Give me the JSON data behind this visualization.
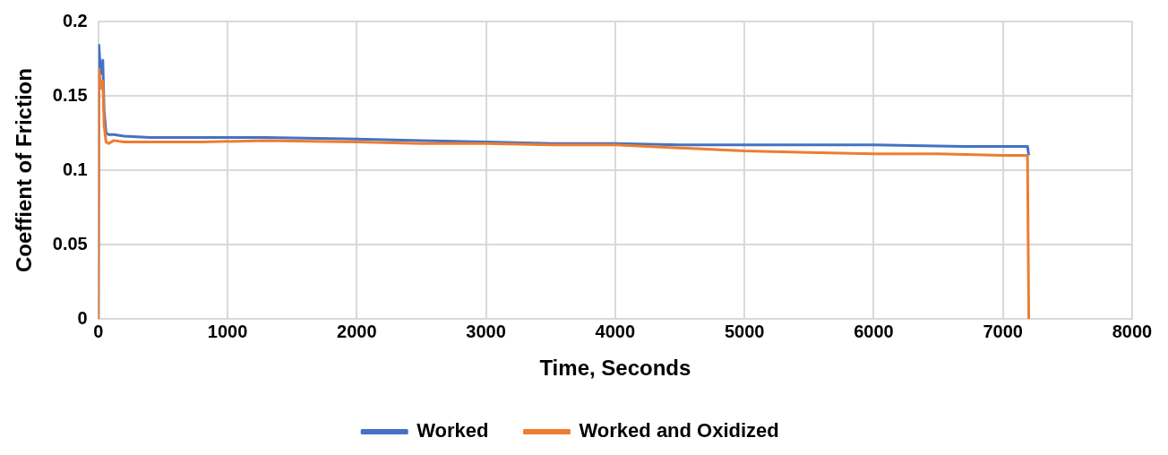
{
  "chart_data": {
    "type": "line",
    "xlabel": "Time, Seconds",
    "ylabel": "Coeffient of Friction",
    "xlim": [
      0,
      8000
    ],
    "xticks": [
      0,
      1000,
      2000,
      3000,
      4000,
      5000,
      6000,
      7000,
      8000
    ],
    "ylim": [
      0,
      0.2
    ],
    "yticks": [
      0,
      0.05,
      0.1,
      0.15,
      0.2
    ],
    "grid": true,
    "legend": "bottom",
    "marker": "none",
    "line_style": "solid",
    "series": [
      {
        "name": "Worked",
        "color": "#4472c4",
        "x": [
          0,
          5,
          15,
          25,
          35,
          45,
          60,
          80,
          120,
          200,
          400,
          800,
          1300,
          2000,
          2500,
          3000,
          3500,
          4000,
          4500,
          5000,
          5300,
          6000,
          6700,
          7190,
          7200
        ],
        "values": [
          0,
          0.184,
          0.17,
          0.165,
          0.174,
          0.14,
          0.125,
          0.124,
          0.124,
          0.123,
          0.122,
          0.122,
          0.122,
          0.121,
          0.12,
          0.119,
          0.118,
          0.118,
          0.117,
          0.117,
          0.117,
          0.117,
          0.116,
          0.116,
          0.11
        ]
      },
      {
        "name": "Worked and Oxidized",
        "color": "#ed7d31",
        "x": [
          0,
          5,
          15,
          25,
          35,
          45,
          60,
          80,
          120,
          200,
          400,
          800,
          1300,
          2000,
          2500,
          3000,
          3500,
          4000,
          4500,
          5000,
          5500,
          6000,
          6500,
          7000,
          7190,
          7200
        ],
        "values": [
          0,
          0.168,
          0.16,
          0.155,
          0.16,
          0.13,
          0.119,
          0.118,
          0.12,
          0.119,
          0.119,
          0.119,
          0.12,
          0.119,
          0.118,
          0.118,
          0.117,
          0.117,
          0.115,
          0.113,
          0.112,
          0.111,
          0.111,
          0.11,
          0.11,
          0
        ]
      }
    ]
  }
}
